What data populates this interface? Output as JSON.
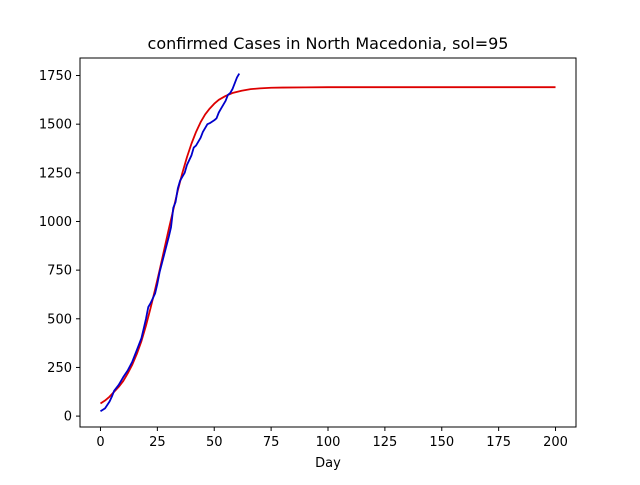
{
  "chart_data": {
    "type": "line",
    "title": "confirmed Cases in North Macedonia, sol=95",
    "xlabel": "Day",
    "ylabel": "",
    "xlim": [
      -9,
      209
    ],
    "ylim": [
      -56,
      1840
    ],
    "xticks": [
      0,
      25,
      50,
      75,
      100,
      125,
      150,
      175,
      200
    ],
    "xtick_labels": [
      "0",
      "25",
      "50",
      "75",
      "100",
      "125",
      "150",
      "175",
      "200"
    ],
    "yticks": [
      0,
      250,
      500,
      750,
      1000,
      1250,
      1500,
      1750
    ],
    "ytick_labels": [
      "0",
      "250",
      "500",
      "750",
      "1000",
      "1250",
      "1500",
      "1750"
    ],
    "grid": false,
    "series": [
      {
        "color": "#dd0000",
        "kind": "model",
        "x": [
          0,
          2,
          4,
          6,
          8,
          10,
          12,
          14,
          16,
          18,
          20,
          22,
          24,
          26,
          28,
          30,
          32,
          34,
          36,
          38,
          40,
          42,
          44,
          46,
          48,
          50,
          52,
          55,
          58,
          62,
          66,
          70,
          75,
          80,
          90,
          100,
          125,
          150,
          175,
          200
        ],
        "y": [
          65,
          80,
          100,
          125,
          150,
          180,
          220,
          265,
          320,
          385,
          465,
          555,
          650,
          750,
          855,
          960,
          1060,
          1160,
          1250,
          1330,
          1400,
          1460,
          1510,
          1550,
          1580,
          1605,
          1625,
          1645,
          1660,
          1672,
          1680,
          1684,
          1687,
          1688,
          1689,
          1690,
          1690,
          1690,
          1690,
          1690
        ]
      },
      {
        "color": "#0000cc",
        "kind": "observed",
        "x": [
          0,
          2,
          4,
          5,
          6,
          8,
          10,
          12,
          14,
          16,
          18,
          19,
          20,
          21,
          22,
          24,
          25,
          26,
          28,
          30,
          31,
          32,
          33,
          34,
          35,
          36,
          37,
          38,
          40,
          41,
          42,
          43,
          44,
          45,
          46,
          47,
          48,
          50,
          51,
          52,
          53,
          54,
          55,
          56,
          57,
          58,
          59,
          60,
          61
        ],
        "y": [
          25,
          40,
          75,
          100,
          130,
          160,
          200,
          235,
          280,
          340,
          400,
          450,
          500,
          560,
          580,
          630,
          680,
          740,
          830,
          920,
          970,
          1070,
          1100,
          1170,
          1210,
          1230,
          1250,
          1290,
          1340,
          1380,
          1390,
          1410,
          1430,
          1460,
          1480,
          1500,
          1505,
          1520,
          1530,
          1560,
          1580,
          1600,
          1620,
          1650,
          1660,
          1680,
          1710,
          1740,
          1760
        ]
      }
    ]
  }
}
